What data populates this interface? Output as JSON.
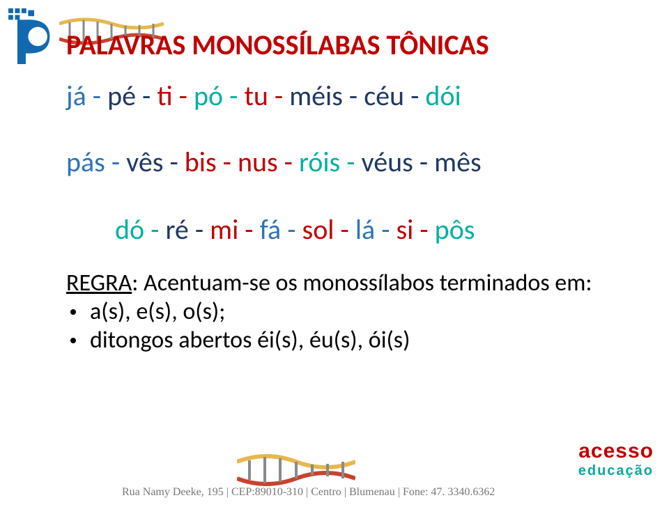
{
  "title": "PALAVRAS MONOSSÍLABAS TÔNICAS",
  "colors": {
    "red": "#c00000",
    "darkblue": "#1f3864",
    "teal": "#00b0a0",
    "blue": "#2e74b5",
    "black": "#000000",
    "gray": "#7f7f7f"
  },
  "line1": {
    "items": [
      {
        "text": "já",
        "color": "#2e74b5"
      },
      {
        "text": "pé",
        "color": "#1f3864"
      },
      {
        "text": "ti",
        "color": "#c00000"
      },
      {
        "text": "pó",
        "color": "#00b0a0"
      },
      {
        "text": "tu",
        "color": "#c00000"
      },
      {
        "text": "méis",
        "color": "#1f3864"
      },
      {
        "text": "céu",
        "color": "#1f3864"
      },
      {
        "text": "dói",
        "color": "#00b0a0"
      }
    ]
  },
  "line2": {
    "items": [
      {
        "text": "pás",
        "color": "#2e74b5"
      },
      {
        "text": "vês",
        "color": "#1f3864"
      },
      {
        "text": "bis",
        "color": "#c00000"
      },
      {
        "text": "nus",
        "color": "#c00000"
      },
      {
        "text": "róis",
        "color": "#00b0a0"
      },
      {
        "text": "véus",
        "color": "#1f3864"
      },
      {
        "text": "mês",
        "color": "#1f3864"
      }
    ]
  },
  "line3": {
    "items": [
      {
        "text": "dó",
        "color": "#00b0a0"
      },
      {
        "text": "ré",
        "color": "#1f3864"
      },
      {
        "text": "mi",
        "color": "#c00000"
      },
      {
        "text": "fá",
        "color": "#2e74b5"
      },
      {
        "text": "sol",
        "color": "#c00000"
      },
      {
        "text": "lá",
        "color": "#2e74b5"
      },
      {
        "text": "si",
        "color": "#c00000"
      },
      {
        "text": "pôs",
        "color": "#00b0a0"
      }
    ]
  },
  "rule_label": "REGRA",
  "rule_text": ": Acentuam-se os monossílabos terminados em:",
  "bullet1": "a(s), e(s), o(s);",
  "bullet2": "ditongos abertos éi(s), éu(s), ói(s)",
  "footer": "Rua Namy Deeke, 195 | CEP:89010-310 | Centro | Blumenau | Fone: 47. 3340.6362",
  "brand": {
    "name1": "acesso",
    "name2": "educação",
    "name1_color": "#c00000",
    "name2_color": "#0aa89b"
  }
}
